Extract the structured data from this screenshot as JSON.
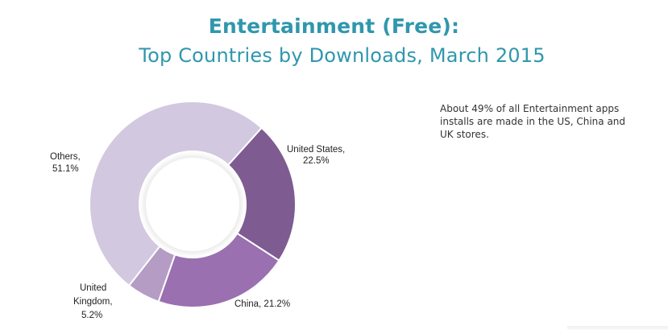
{
  "title": "Entertainment (Free):",
  "subtitle": "Top Countries by Downloads, March 2015",
  "note": "About 49% of all Entertainment apps installs are made in the US, China and UK stores.",
  "chart_data": {
    "type": "pie",
    "subtype": "donut",
    "slices": [
      {
        "label": "United States,",
        "value_label": "22.5%",
        "value": 22.5,
        "color": "#7e5b91"
      },
      {
        "label": "China, 21.2%",
        "value_label": "",
        "value": 21.2,
        "color": "#9a70b0"
      },
      {
        "label": "United",
        "label2": "Kingdom,",
        "value_label": "5.2%",
        "value": 5.2,
        "color": "#b59cc4"
      },
      {
        "label": "Others,",
        "value_label": "51.1%",
        "value": 51.1,
        "color": "#d2c8df"
      }
    ]
  }
}
